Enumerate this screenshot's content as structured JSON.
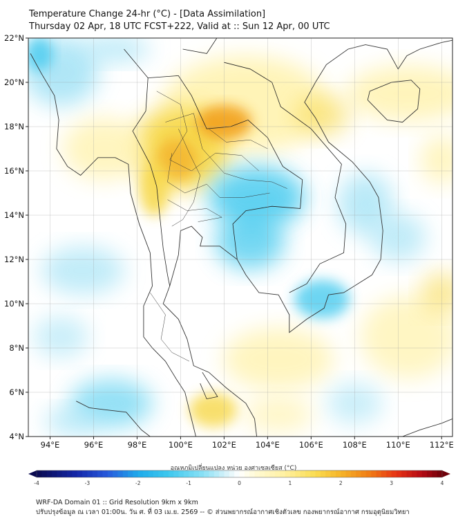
{
  "header": {
    "title_line1": "Temperature Change 24-hr (°C) - [Data Assimilation]",
    "title_line2": "Thursday 02 Apr, 18 UTC FCST+222, Valid at :: Sun 12 Apr, 00 UTC"
  },
  "map": {
    "lat_labels": [
      "22°N",
      "20°N",
      "18°N",
      "16°N",
      "14°N",
      "12°N",
      "10°N",
      "8°N",
      "6°N",
      "4°N"
    ],
    "lon_labels": [
      "94°E",
      "96°E",
      "98°E",
      "100°E",
      "102°E",
      "104°E",
      "106°E",
      "108°E",
      "110°E",
      "112°E"
    ],
    "lat_range": [
      4,
      22
    ],
    "lon_range": [
      93,
      112.5
    ],
    "grid": true,
    "colors": {
      "cold_cyan": "#3ec8ee",
      "light_cyan": "#a8e4f6",
      "neutral": "#ffffff",
      "light_yellow": "#fff3b0",
      "yellow": "#f7d84a",
      "orange": "#f2a11c",
      "coast": "#333333"
    }
  },
  "colorbar": {
    "title": "อุณหภูมิเปลี่ยนแปลง หน่วย องศาเซลเซียส (°C)",
    "tick_labels": [
      "-4",
      "-3",
      "-2",
      "-1",
      "0",
      "1",
      "2",
      "3",
      "4"
    ],
    "range": [
      -4,
      4
    ]
  },
  "footer": {
    "line1": "WRF-DA Domain 01 :: Grid Resolution 9km x 9km",
    "line2": "ปรับปรุงข้อมูล ณ เวลา 01:00น. วัน ศ. ที่ 03 เม.ย. 2569 -- © ส่วนพยากรณ์อากาศเชิงตัวเลข กองพยากรณ์อากาศ กรมอุตุนิยมวิทยา"
  }
}
